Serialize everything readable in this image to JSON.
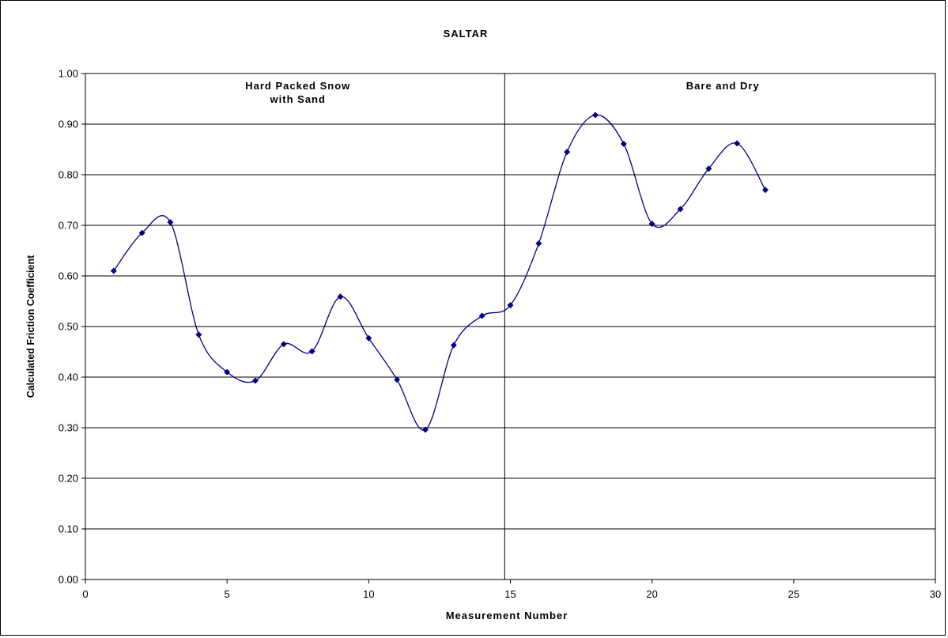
{
  "chart_data": {
    "type": "line",
    "title": "SALTAR",
    "xlabel": "Measurement Number",
    "ylabel": "Calculated Friction Coefficient",
    "xlim": [
      0,
      30
    ],
    "ylim": [
      0,
      1
    ],
    "x_ticks": [
      "0",
      "5",
      "10",
      "15",
      "20",
      "25",
      "30"
    ],
    "y_ticks": [
      "0.00",
      "0.10",
      "0.20",
      "0.30",
      "0.40",
      "0.50",
      "0.60",
      "0.70",
      "0.80",
      "0.90",
      "1.00"
    ],
    "grid": "horizontal",
    "legend": "none",
    "smoothed": true,
    "series_color": "#000080",
    "series": [
      {
        "x": [
          1,
          2,
          3,
          4,
          5,
          6,
          7,
          8,
          9,
          10,
          11,
          12,
          13,
          14,
          15,
          16,
          17,
          18,
          19,
          20,
          21,
          22,
          23,
          24
        ],
        "values": [
          0.61,
          0.685,
          0.706,
          0.484,
          0.41,
          0.393,
          0.465,
          0.451,
          0.559,
          0.477,
          0.395,
          0.296,
          0.463,
          0.521,
          0.542,
          0.664,
          0.845,
          0.918,
          0.861,
          0.703,
          0.732,
          0.812,
          0.862,
          0.77
        ]
      }
    ],
    "divider_x": 14.8,
    "annotations": [
      {
        "lines": [
          "Hard Packed Snow",
          "with Sand"
        ],
        "x": 7.5
      },
      {
        "lines": [
          "Bare and Dry"
        ],
        "x": 22.5
      }
    ]
  }
}
